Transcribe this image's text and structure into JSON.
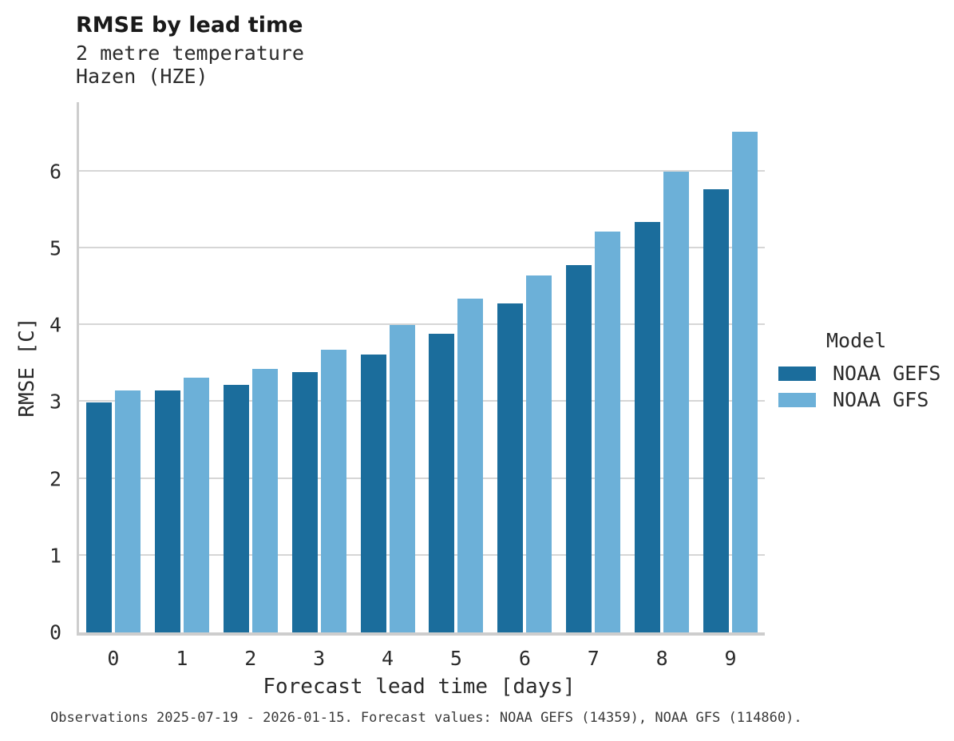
{
  "chart_data": {
    "type": "bar",
    "title": "RMSE by lead time",
    "subtitle_lines": [
      "2 metre temperature",
      "Hazen (HZE)"
    ],
    "xlabel": "Forecast lead time [days]",
    "ylabel": "RMSE [C]",
    "categories": [
      "0",
      "1",
      "2",
      "3",
      "4",
      "5",
      "6",
      "7",
      "8",
      "9"
    ],
    "series": [
      {
        "name": "NOAA GEFS",
        "color": "#1b6d9c",
        "values": [
          2.99,
          3.15,
          3.22,
          3.39,
          3.62,
          3.89,
          4.28,
          4.78,
          5.34,
          5.77
        ]
      },
      {
        "name": "NOAA GFS",
        "color": "#6cb0d8",
        "values": [
          3.15,
          3.32,
          3.43,
          3.68,
          4.0,
          4.34,
          4.64,
          5.22,
          6.0,
          6.52
        ]
      }
    ],
    "ylim": [
      0,
      6.9
    ],
    "yticks": [
      0,
      1,
      2,
      3,
      4,
      5,
      6
    ],
    "grid": true,
    "legend": {
      "title": "Model",
      "position": "right"
    },
    "caption": "Observations 2025-07-19 - 2026-01-15. Forecast values: NOAA GEFS (14359), NOAA GFS (114860)."
  },
  "colors": {
    "gridline": "#d6d6d6",
    "spine": "#cdcdcd",
    "text": "#2b2b2b"
  }
}
